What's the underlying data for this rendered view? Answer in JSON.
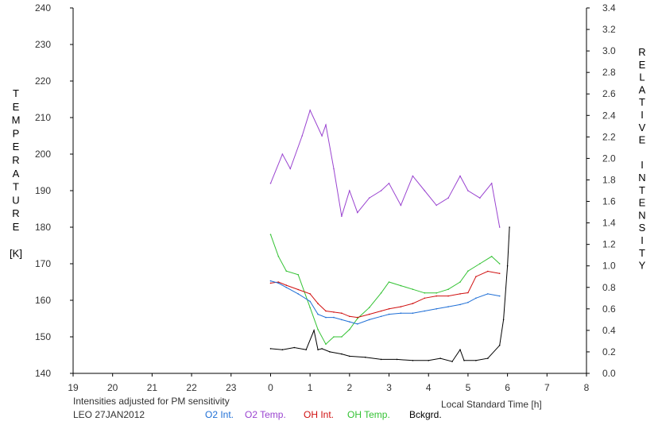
{
  "chart_data": {
    "type": "line",
    "x_ticks": [
      "19",
      "20",
      "21",
      "22",
      "23",
      "0",
      "1",
      "2",
      "3",
      "4",
      "5",
      "6",
      "7",
      "8"
    ],
    "y_left_ticks": [
      140,
      150,
      160,
      170,
      180,
      190,
      200,
      210,
      220,
      230,
      240
    ],
    "y_right_ticks": [
      "0.0",
      "0.2",
      "0.4",
      "0.6",
      "0.8",
      "1.0",
      "1.2",
      "1.4",
      "1.6",
      "1.8",
      "2.0",
      "2.2",
      "2.4",
      "2.6",
      "2.8",
      "3.0",
      "3.2",
      "3.4"
    ],
    "ylim_left": [
      140,
      240
    ],
    "ylim_right": [
      0.0,
      3.4
    ],
    "xlim_hours_from_19": [
      0,
      13
    ],
    "left_label": [
      "T",
      "E",
      "M",
      "P",
      "E",
      "R",
      "A",
      "T",
      "U",
      "R",
      "E",
      "",
      "[K]"
    ],
    "right_label": [
      "R",
      "E",
      "L",
      "A",
      "T",
      "I",
      "V",
      "E",
      "",
      "I",
      "N",
      "T",
      "E",
      "N",
      "S",
      "I",
      "T",
      "Y"
    ],
    "xlabel": "Local Standard Time [h]",
    "note": "Intensities adjusted for PM sensitivity",
    "station": "LEO 27JAN2012",
    "colors": {
      "o2_int": "#1f6fd6",
      "o2_temp": "#9a44d0",
      "oh_int": "#d01010",
      "oh_temp": "#33c233",
      "bckgrd": "#000000",
      "note": "#33c233"
    },
    "legend": [
      {
        "key": "o2_int",
        "label": "O2 Int."
      },
      {
        "key": "o2_temp",
        "label": "O2 Temp."
      },
      {
        "key": "oh_int",
        "label": "OH Int."
      },
      {
        "key": "oh_temp",
        "label": "OH Temp."
      },
      {
        "key": "bckgrd",
        "label": "Bckgrd."
      }
    ],
    "series": [
      {
        "key": "o2_temp",
        "axis": "left",
        "x": [
          0.0,
          0.3,
          0.5,
          0.8,
          1.0,
          1.3,
          1.4,
          1.6,
          1.8,
          2.0,
          2.2,
          2.5,
          2.8,
          3.0,
          3.3,
          3.6,
          3.9,
          4.2,
          4.5,
          4.8,
          5.0,
          5.3,
          5.6,
          5.8
        ],
        "y": [
          192,
          200,
          196,
          205,
          212,
          205,
          208,
          196,
          183,
          190,
          184,
          188,
          190,
          192,
          186,
          194,
          190,
          186,
          188,
          194,
          190,
          188,
          192,
          180
        ]
      },
      {
        "key": "oh_temp",
        "axis": "left",
        "x": [
          0.0,
          0.2,
          0.4,
          0.7,
          1.0,
          1.2,
          1.4,
          1.6,
          1.8,
          2.0,
          2.2,
          2.5,
          2.8,
          3.0,
          3.3,
          3.6,
          3.9,
          4.2,
          4.5,
          4.8,
          5.0,
          5.3,
          5.6,
          5.8
        ],
        "y": [
          178,
          172,
          168,
          167,
          158,
          152,
          148,
          150,
          150,
          152,
          155,
          158,
          162,
          165,
          164,
          163,
          162,
          162,
          163,
          165,
          168,
          170,
          172,
          170
        ]
      },
      {
        "key": "oh_int",
        "axis": "right",
        "x": [
          0.0,
          0.2,
          0.4,
          0.7,
          1.0,
          1.2,
          1.4,
          1.6,
          1.8,
          2.0,
          2.2,
          2.5,
          2.8,
          3.0,
          3.3,
          3.6,
          3.9,
          4.2,
          4.5,
          4.8,
          5.0,
          5.2,
          5.5,
          5.8
        ],
        "y": [
          0.84,
          0.85,
          0.82,
          0.78,
          0.74,
          0.65,
          0.58,
          0.57,
          0.56,
          0.53,
          0.52,
          0.55,
          0.58,
          0.6,
          0.62,
          0.65,
          0.7,
          0.72,
          0.72,
          0.74,
          0.75,
          0.9,
          0.95,
          0.93
        ]
      },
      {
        "key": "o2_int",
        "axis": "right",
        "x": [
          0.0,
          0.2,
          0.4,
          0.7,
          1.0,
          1.2,
          1.4,
          1.6,
          1.8,
          2.0,
          2.2,
          2.5,
          2.8,
          3.0,
          3.3,
          3.6,
          3.9,
          4.2,
          4.5,
          4.8,
          5.0,
          5.2,
          5.5,
          5.8
        ],
        "y": [
          0.86,
          0.84,
          0.8,
          0.74,
          0.67,
          0.55,
          0.52,
          0.52,
          0.5,
          0.48,
          0.46,
          0.5,
          0.53,
          0.55,
          0.56,
          0.56,
          0.58,
          0.6,
          0.62,
          0.64,
          0.66,
          0.7,
          0.74,
          0.72
        ]
      },
      {
        "key": "bckgrd",
        "axis": "right",
        "x": [
          0.0,
          0.3,
          0.6,
          0.9,
          1.1,
          1.2,
          1.3,
          1.5,
          1.8,
          2.0,
          2.4,
          2.8,
          3.2,
          3.6,
          4.0,
          4.3,
          4.6,
          4.8,
          4.9,
          5.2,
          5.5,
          5.8,
          5.9,
          6.0,
          6.05
        ],
        "y": [
          0.23,
          0.22,
          0.24,
          0.22,
          0.4,
          0.22,
          0.23,
          0.2,
          0.18,
          0.16,
          0.15,
          0.13,
          0.13,
          0.12,
          0.12,
          0.14,
          0.11,
          0.22,
          0.12,
          0.12,
          0.14,
          0.26,
          0.5,
          1.0,
          1.36
        ]
      }
    ]
  }
}
